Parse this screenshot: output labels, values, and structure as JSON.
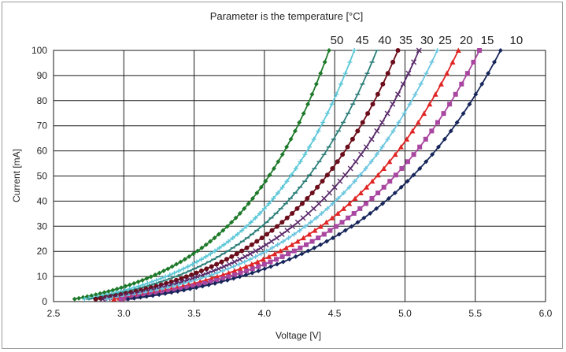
{
  "chart_data": {
    "type": "line",
    "title": "Parameter is the temperature [°C]",
    "xlabel": "Voltage [V]",
    "ylabel": "Current [mA]",
    "xlim": [
      2.5,
      6.0
    ],
    "ylim": [
      0,
      100
    ],
    "xticks": [
      "2.5",
      "3.0",
      "3.5",
      "4.0",
      "4.5",
      "5.0",
      "5.5",
      "6.0"
    ],
    "yticks": [
      "0",
      "10",
      "20",
      "30",
      "40",
      "50",
      "60",
      "70",
      "80",
      "90",
      "100"
    ],
    "grid": true,
    "legend": "series labels printed above the top of the plot area, at each curve's end",
    "series": [
      {
        "name": "50",
        "color": "#1e7a2a",
        "marker": "diamond",
        "x0": 2.65,
        "x100": 4.46
      },
      {
        "name": "45",
        "color": "#5ec8d8",
        "marker": "cross",
        "x0": 2.72,
        "x100": 4.64
      },
      {
        "name": "40",
        "color": "#2e7f7a",
        "marker": "dash",
        "x0": 2.75,
        "x100": 4.8
      },
      {
        "name": "35",
        "color": "#6b0d1a",
        "marker": "circle",
        "x0": 2.8,
        "x100": 4.95
      },
      {
        "name": "30",
        "color": "#5a2a6a",
        "marker": "x",
        "x0": 2.85,
        "x100": 5.1
      },
      {
        "name": "25",
        "color": "#6cc6df",
        "marker": "cross",
        "x0": 2.88,
        "x100": 5.23
      },
      {
        "name": "20",
        "color": "#e02525",
        "marker": "triangle",
        "x0": 2.93,
        "x100": 5.38
      },
      {
        "name": "15",
        "color": "#a846a0",
        "marker": "square",
        "x0": 2.98,
        "x100": 5.53
      },
      {
        "name": "10",
        "color": "#17265a",
        "marker": "diamond",
        "x0": 3.03,
        "x100": 5.68
      }
    ]
  }
}
